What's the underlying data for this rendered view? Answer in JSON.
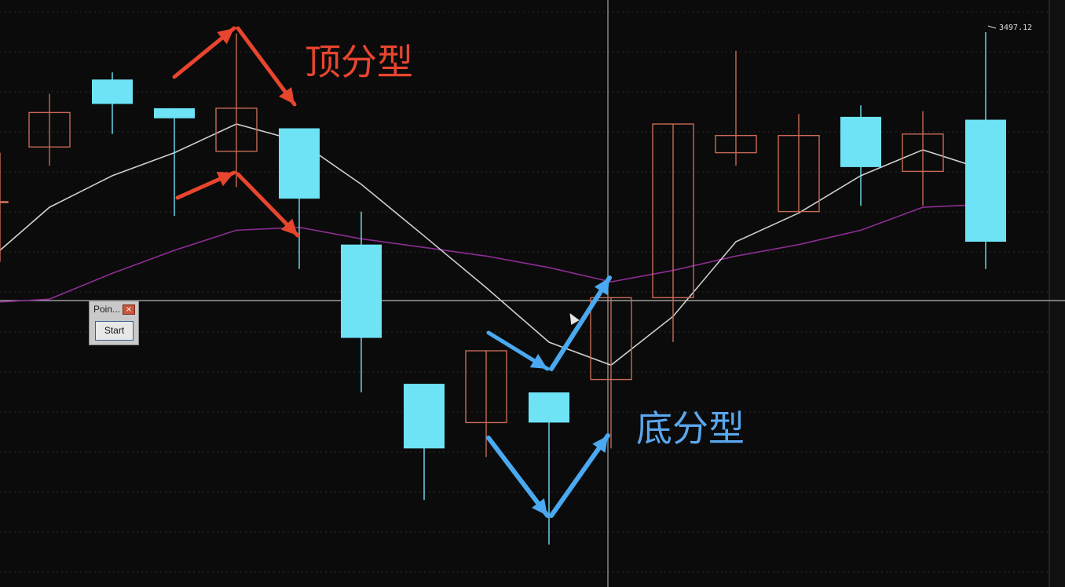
{
  "chart_data": {
    "type": "candlestick",
    "price_label": "3497.12",
    "candles": [
      {
        "open": 3438.0,
        "high": 3455.0,
        "low": 3417.0,
        "close": 3438.0,
        "color": "down",
        "partial": true
      },
      {
        "open": 3469.0,
        "high": 3475.5,
        "low": 3450.5,
        "close": 3457.0,
        "color": "down"
      },
      {
        "open": 3472.0,
        "high": 3483.0,
        "low": 3461.5,
        "close": 3480.5,
        "color": "up"
      },
      {
        "open": 3470.5,
        "high": 3470.5,
        "low": 3433.0,
        "close": 3467.0,
        "color": "up"
      },
      {
        "open": 3470.5,
        "high": 3496.5,
        "low": 3443.0,
        "close": 3455.5,
        "color": "down"
      },
      {
        "open": 3463.5,
        "high": 3463.5,
        "low": 3414.5,
        "close": 3439.0,
        "color": "up"
      },
      {
        "open": 3423.0,
        "high": 3434.5,
        "low": 3371.5,
        "close": 3390.5,
        "color": "up"
      },
      {
        "open": 3374.5,
        "high": 3374.5,
        "low": 3334.0,
        "close": 3352.0,
        "color": "up"
      },
      {
        "open": 3386.0,
        "high": 3386.0,
        "low": 3349.0,
        "close": 3361.0,
        "color": "down"
      },
      {
        "open": 3371.5,
        "high": 3371.5,
        "low": 3318.5,
        "close": 3361.0,
        "color": "up"
      },
      {
        "open": 3404.5,
        "high": 3404.5,
        "low": 3352.0,
        "close": 3376.0,
        "color": "down"
      },
      {
        "open": 3404.5,
        "high": 3465.0,
        "low": 3389.0,
        "close": 3465.0,
        "color": "down"
      },
      {
        "open": 3455.0,
        "high": 3490.5,
        "low": 3450.5,
        "close": 3461.0,
        "color": "down"
      },
      {
        "open": 3434.5,
        "high": 3468.5,
        "low": 3434.5,
        "close": 3461.0,
        "color": "down"
      },
      {
        "open": 3467.5,
        "high": 3471.5,
        "low": 3436.5,
        "close": 3450.0,
        "color": "up"
      },
      {
        "open": 3448.5,
        "high": 3469.5,
        "low": 3436.5,
        "close": 3461.5,
        "color": "down"
      },
      {
        "open": 3466.5,
        "high": 3497.0,
        "low": 3414.5,
        "close": 3424.0,
        "color": "up"
      }
    ],
    "ma_short": [
      3421,
      3436,
      3447,
      3455,
      3465,
      3459,
      3444,
      3426,
      3408,
      3389,
      3381,
      3398,
      3424,
      3434,
      3447,
      3456,
      3449
    ],
    "ma_long": [
      3403,
      3404,
      3413,
      3421,
      3428,
      3429,
      3425,
      3422,
      3419,
      3415,
      3410,
      3414,
      3419,
      3423,
      3428,
      3436,
      3437
    ],
    "annotations": {
      "top": "顶分型",
      "bottom": "底分型"
    }
  },
  "popup": {
    "title": "Poin...",
    "close_icon": "close-icon",
    "start_label": "Start"
  },
  "colors": {
    "background": "#0b0b0b",
    "up_fill": "#6ee3f6",
    "down_stroke": "#c86a55",
    "ma_short": "#cfcfcf",
    "ma_long": "#8c2d93",
    "top_arrow": "#e8452f",
    "bottom_arrow": "#4aa9f0"
  }
}
